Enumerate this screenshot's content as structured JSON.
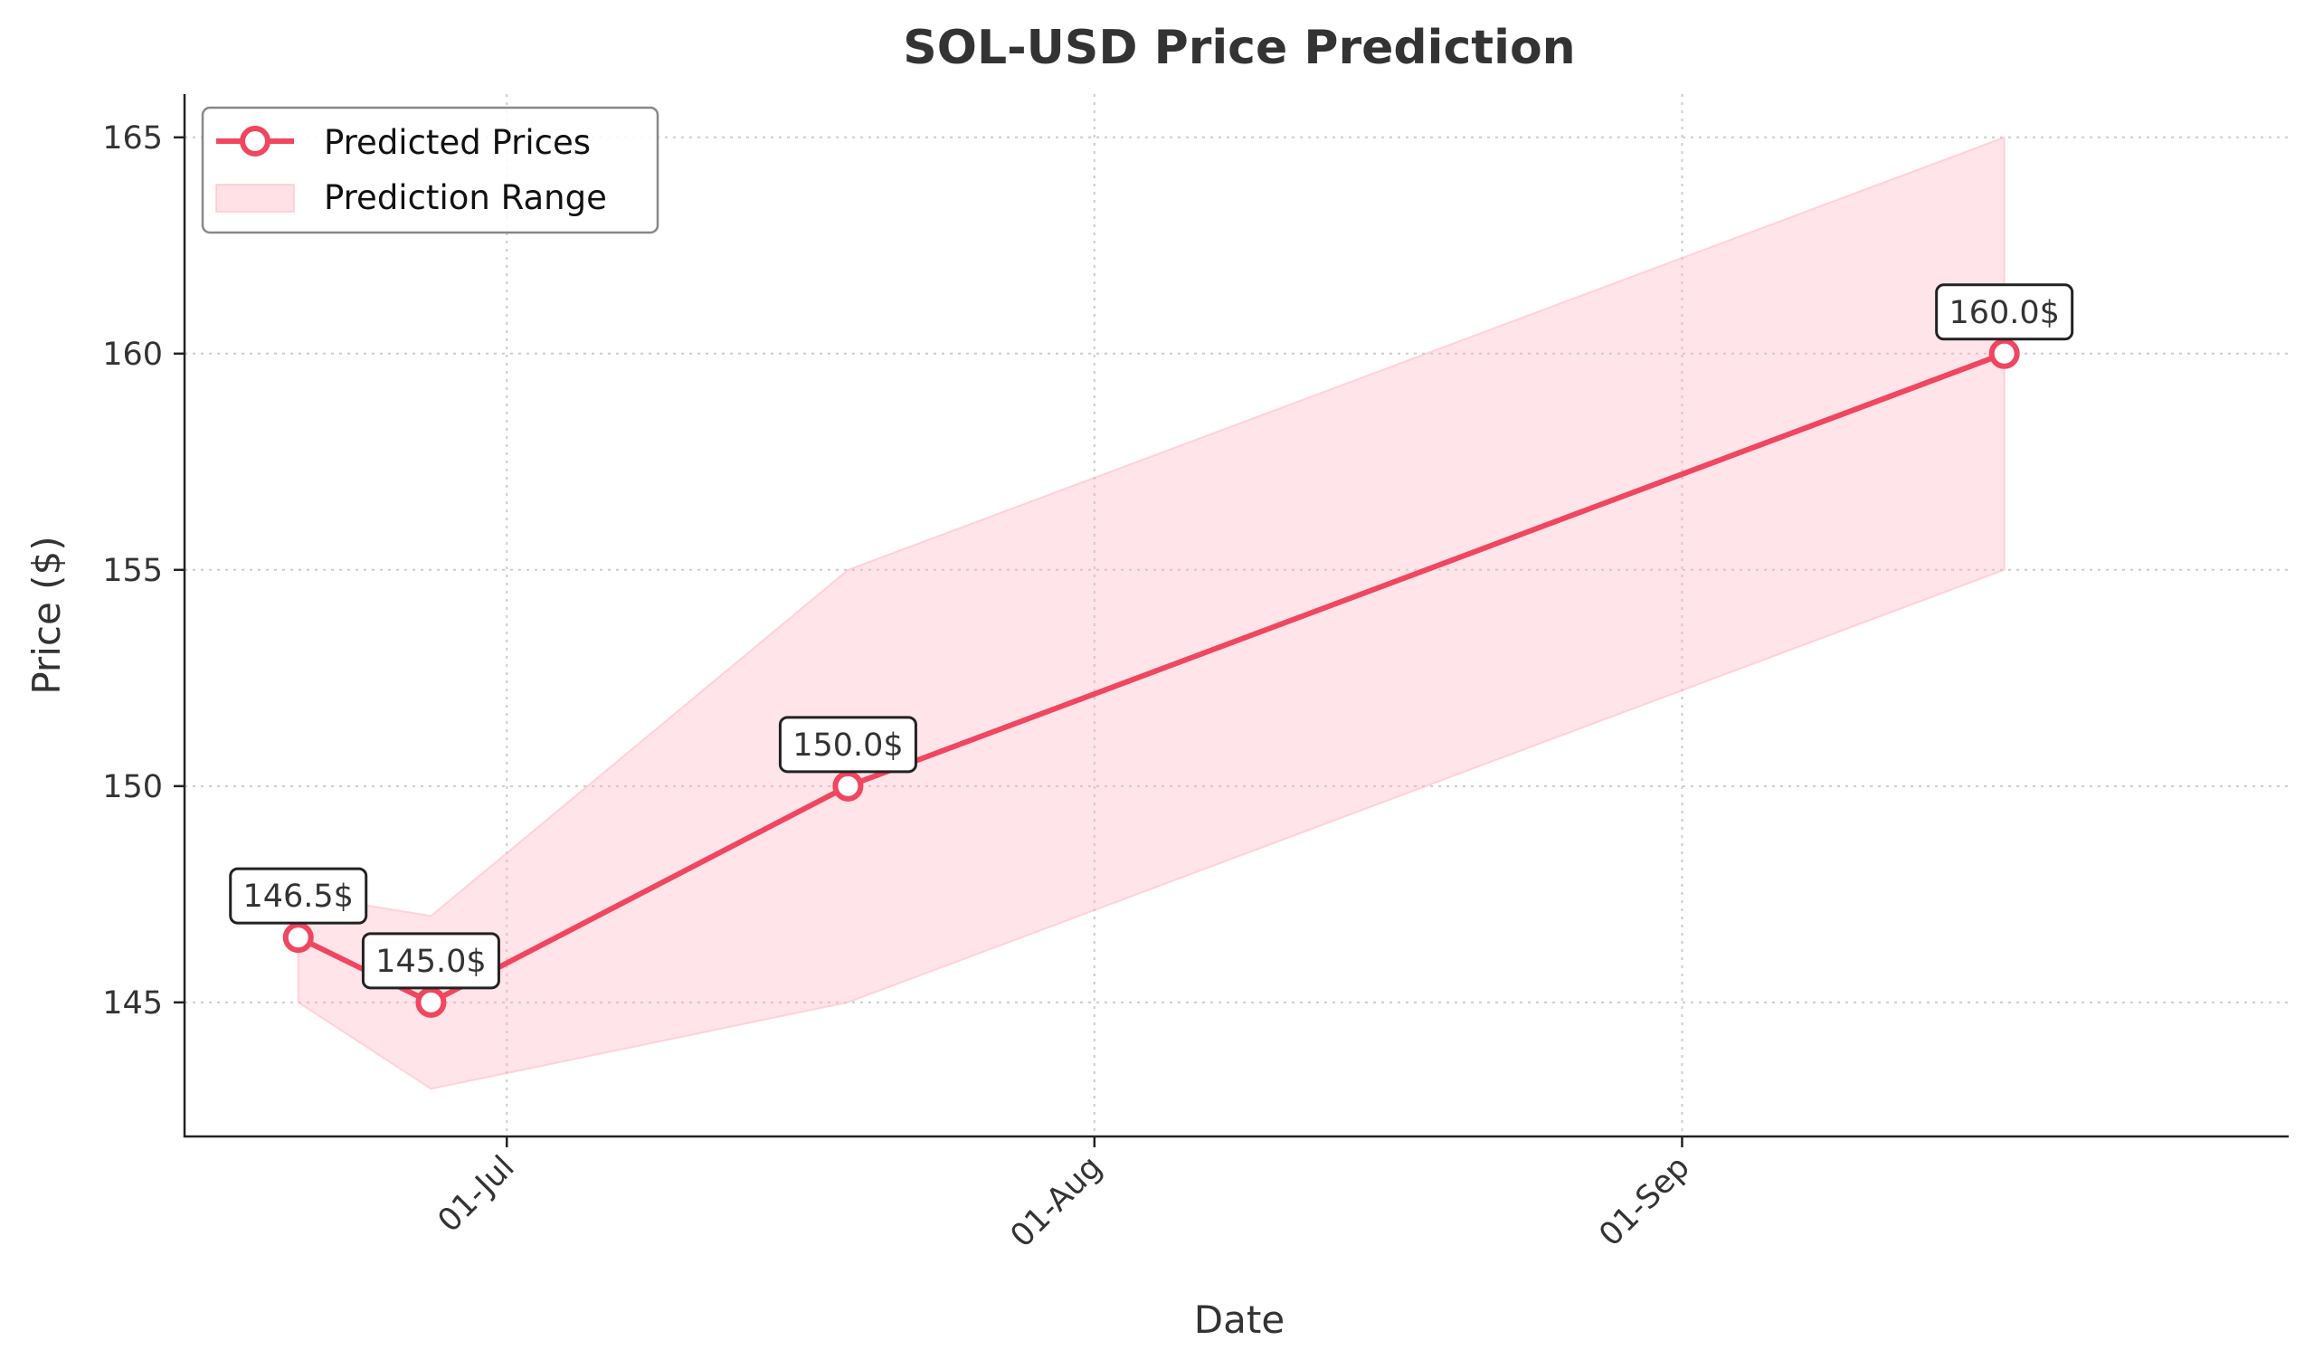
{
  "chart_data": {
    "type": "line",
    "title": "SOL-USD Price Prediction",
    "xlabel": "Date",
    "ylabel": "Price ($)",
    "x_ticks": [
      {
        "date": "2024-07-01",
        "label": "01-Jul"
      },
      {
        "date": "2024-08-01",
        "label": "01-Aug"
      },
      {
        "date": "2024-09-01",
        "label": "01-Sep"
      }
    ],
    "y_ticks": [
      145,
      150,
      155,
      160,
      165
    ],
    "xlim": [
      "2024-06-14",
      "2024-10-03"
    ],
    "ylim": [
      141.9,
      166.0
    ],
    "grid": true,
    "legend_position": "top-left",
    "series": [
      {
        "name": "Predicted Prices",
        "kind": "line",
        "color": "#f0465f",
        "points": [
          {
            "date": "2024-06-20",
            "value": 146.5,
            "label": "146.5$"
          },
          {
            "date": "2024-06-27",
            "value": 145.0,
            "label": "145.0$"
          },
          {
            "date": "2024-07-19",
            "value": 150.0,
            "label": "150.0$"
          },
          {
            "date": "2024-09-18",
            "value": 160.0,
            "label": "160.0$"
          }
        ]
      },
      {
        "name": "Prediction Range",
        "kind": "band",
        "color": "#ffb3c1",
        "points": [
          {
            "date": "2024-06-20",
            "low": 145.0,
            "high": 147.5
          },
          {
            "date": "2024-06-27",
            "low": 143.0,
            "high": 147.0
          },
          {
            "date": "2024-07-19",
            "low": 145.0,
            "high": 155.0
          },
          {
            "date": "2024-09-18",
            "low": 155.0,
            "high": 165.0
          }
        ]
      }
    ]
  }
}
